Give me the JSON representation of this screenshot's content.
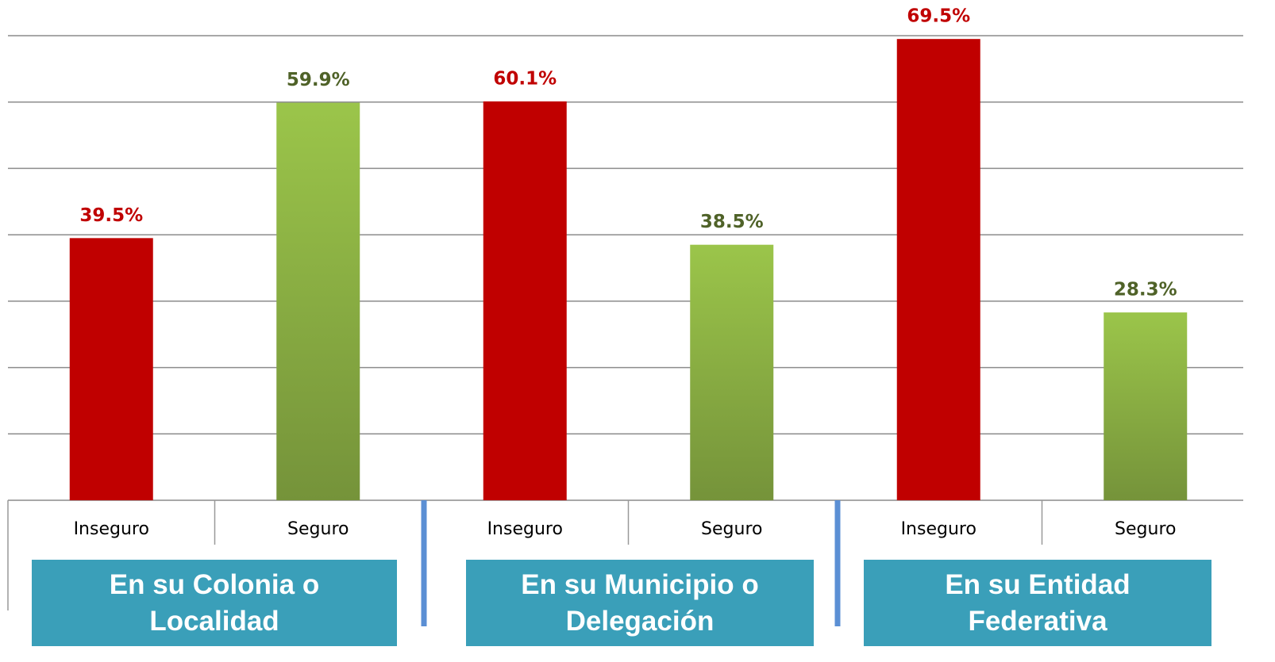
{
  "chart_data": {
    "type": "bar",
    "categories": [
      "En su Colonia o Localidad",
      "En su Municipio o Delegación",
      "En su Entidad Federativa"
    ],
    "series": [
      {
        "name": "Inseguro",
        "color": "#c00000",
        "values": [
          39.5,
          60.1,
          69.5
        ],
        "value_labels": [
          "39.5%",
          "60.1%",
          "69.5%"
        ]
      },
      {
        "name": "Seguro",
        "color": "#9bc54a",
        "values": [
          59.9,
          38.5,
          28.3
        ],
        "value_labels": [
          "59.9%",
          "38.5%",
          "28.3%"
        ]
      }
    ],
    "ylim": [
      0,
      70
    ],
    "yticks": [
      0,
      10,
      20,
      30,
      40,
      50,
      60,
      70
    ],
    "grid": true
  }
}
